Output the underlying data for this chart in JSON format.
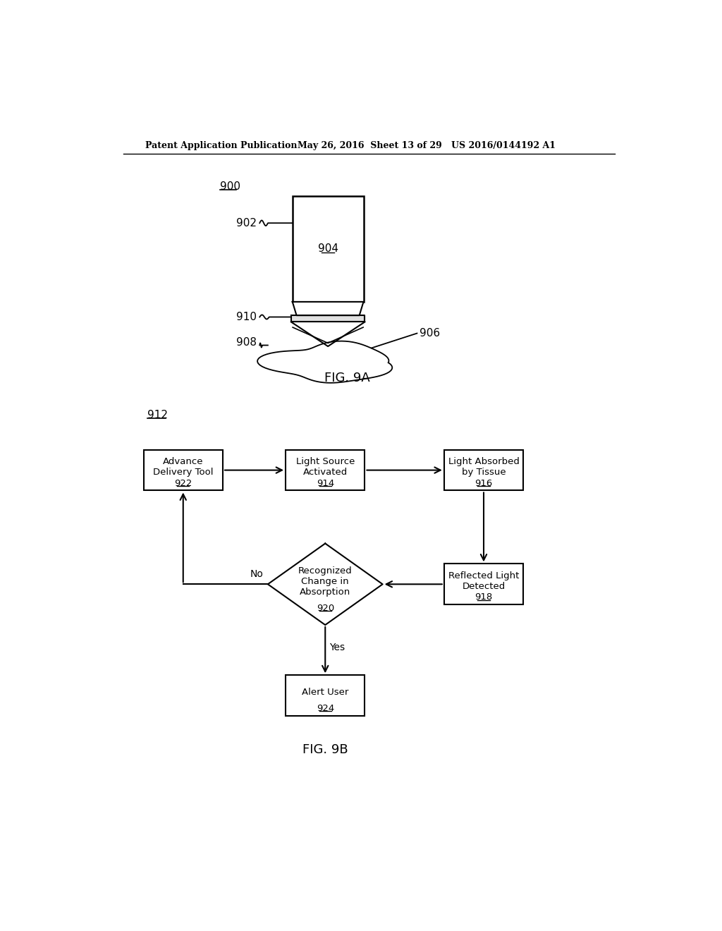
{
  "bg_color": "#ffffff",
  "header_left": "Patent Application Publication",
  "header_mid": "May 26, 2016  Sheet 13 of 29",
  "header_right": "US 2016/0144192 A1",
  "fig9a_label": "FIG. 9A",
  "fig9b_label": "FIG. 9B",
  "label_900": "900",
  "label_902": "902",
  "label_904": "904",
  "label_906": "906",
  "label_908": "908",
  "label_910": "910",
  "label_912": "912",
  "no_label": "No",
  "yes_label": "Yes"
}
